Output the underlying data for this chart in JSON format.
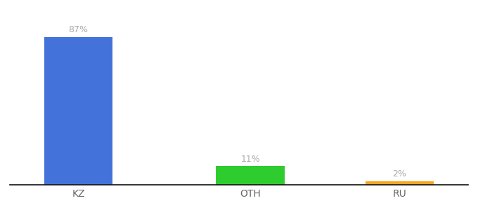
{
  "categories": [
    "KZ",
    "OTH",
    "RU"
  ],
  "values": [
    87,
    11,
    2
  ],
  "bar_colors": [
    "#4472db",
    "#2ecc2e",
    "#f5a623"
  ],
  "label_texts": [
    "87%",
    "11%",
    "2%"
  ],
  "background_color": "#ffffff",
  "ylim": [
    0,
    100
  ],
  "bar_width": 0.6,
  "xlabel_fontsize": 10,
  "label_fontsize": 9,
  "label_color": "#aaaaaa",
  "spine_color": "#111111",
  "x_positions": [
    1.0,
    2.5,
    3.8
  ]
}
